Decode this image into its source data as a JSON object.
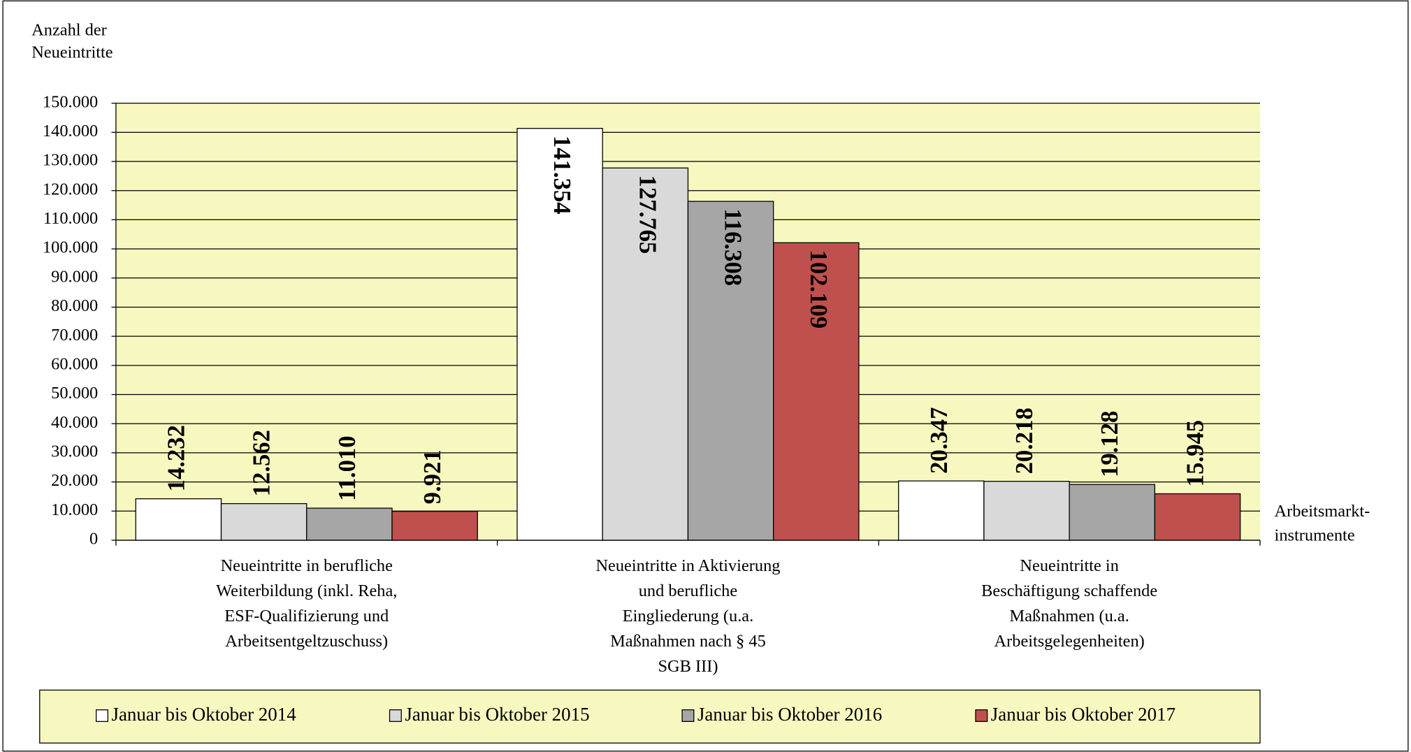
{
  "chart_data": {
    "type": "bar",
    "y_axis_title": [
      "Anzahl der",
      "Neueintritte"
    ],
    "x_axis_title": [
      "Arbeitsmarkt-",
      "instrumente"
    ],
    "categories": [
      [
        "Neueintritte in berufliche",
        "Weiterbildung (inkl. Reha,",
        "ESF-Qualifizierung und",
        "Arbeitsentgeltzuschuss)"
      ],
      [
        "Neueintritte in Aktivierung",
        "und berufliche",
        "Eingliederung (u.a.",
        "Maßnahmen nach § 45",
        "SGB III)"
      ],
      [
        "Neueintritte in",
        "Beschäftigung schaffende",
        "Maßnahmen (u.a.",
        "Arbeitsgelegenheiten)"
      ]
    ],
    "series": [
      {
        "name": "Januar bis Oktober 2014",
        "color": "#ffffff",
        "values": [
          14232,
          141354,
          20347
        ],
        "value_labels": [
          "14.232",
          "141.354",
          "20.347"
        ]
      },
      {
        "name": "Januar bis Oktober 2015",
        "color": "#d9d9d9",
        "values": [
          12562,
          127765,
          20218
        ],
        "value_labels": [
          "12.562",
          "127.765",
          "20.218"
        ]
      },
      {
        "name": "Januar bis Oktober 2016",
        "color": "#a6a6a6",
        "values": [
          11010,
          116308,
          19128
        ],
        "value_labels": [
          "11.010",
          "116.308",
          "19.128"
        ]
      },
      {
        "name": "Januar bis Oktober 2017",
        "color": "#c0504d",
        "values": [
          9921,
          102109,
          15945
        ],
        "value_labels": [
          "9.921",
          "102.109",
          "15.945"
        ]
      }
    ],
    "ylim": [
      0,
      150000
    ],
    "yticks": [
      0,
      {
        "value": 10000,
        "label": "10.000"
      },
      {
        "value": 20000,
        "label": "20.000"
      },
      {
        "value": 30000,
        "label": "30.000"
      },
      {
        "value": 40000,
        "label": "40.000"
      },
      {
        "value": 50000,
        "label": "50.000"
      },
      {
        "value": 60000,
        "label": "60.000"
      },
      {
        "value": 70000,
        "label": "70.000"
      },
      {
        "value": 80000,
        "label": "80.000"
      },
      {
        "value": 90000,
        "label": "90.000"
      },
      {
        "value": 100000,
        "label": "100.000"
      },
      {
        "value": 110000,
        "label": "110.000"
      },
      {
        "value": 120000,
        "label": "120.000"
      },
      {
        "value": 130000,
        "label": "130.000"
      },
      {
        "value": 140000,
        "label": "140.000"
      },
      {
        "value": 150000,
        "label": "150.000"
      }
    ],
    "grid": true,
    "plot_background": "#f7f7c0",
    "legend": "bottom"
  }
}
